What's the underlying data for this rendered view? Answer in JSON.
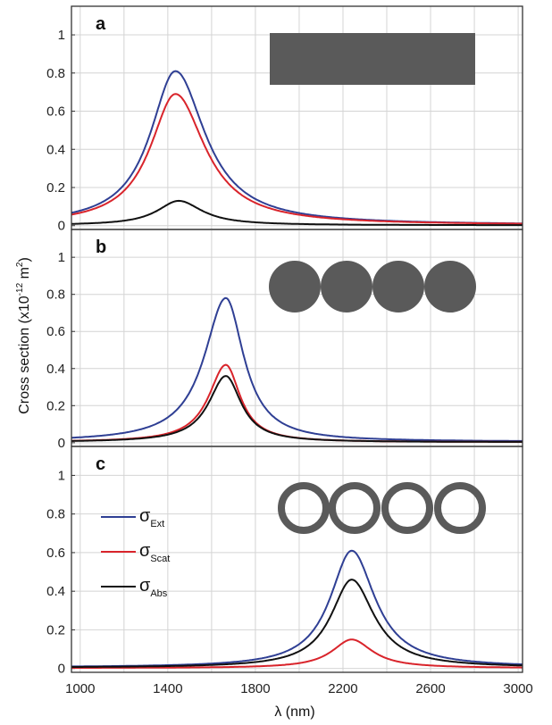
{
  "chart_data": {
    "type": "line",
    "xlabel": "λ (nm)",
    "ylabel": "Cross section (x10-12 m2)",
    "ylabel_parts": {
      "pre": "Cross section (x10",
      "sup1": "-12",
      "mid": " m",
      "sup2": "2",
      "post": ")"
    },
    "xlim": [
      960,
      3020
    ],
    "ylim": [
      -0.02,
      1.15
    ],
    "x_ticks": [
      1000,
      1400,
      1800,
      2200,
      2600,
      3000
    ],
    "x_tick_labels": [
      "1000",
      "1400",
      "1800",
      "2200",
      "2600",
      "3000"
    ],
    "y_ticks": [
      0,
      0.2,
      0.4,
      0.6,
      0.8,
      1
    ],
    "y_tick_labels": [
      "0",
      "0.2",
      "0.4",
      "0.6",
      "0.8",
      "1"
    ],
    "grid": true,
    "legend_placement": "left",
    "legend": [
      {
        "symbol": "σ",
        "sub": "Ext",
        "color": "#2f3f94"
      },
      {
        "symbol": "σ",
        "sub": "Scat",
        "color": "#d9242b"
      },
      {
        "symbol": "σ",
        "sub": "Abs",
        "color": "#111111"
      }
    ],
    "panels": [
      {
        "label": "a",
        "inset": "rod",
        "series": [
          {
            "color": "#2f3f94",
            "peak_x": 1435,
            "peak_y": 0.81,
            "gamma_left": 140,
            "gamma_right": 165,
            "baseline": 0.003
          },
          {
            "color": "#d9242b",
            "peak_x": 1435,
            "peak_y": 0.69,
            "gamma_left": 140,
            "gamma_right": 165,
            "baseline": 0.003
          },
          {
            "color": "#111111",
            "peak_x": 1450,
            "peak_y": 0.13,
            "gamma_left": 120,
            "gamma_right": 130,
            "baseline": 0.002
          }
        ]
      },
      {
        "label": "b",
        "inset": "spheres",
        "series": [
          {
            "color": "#2f3f94",
            "peak_x": 1665,
            "peak_y": 0.78,
            "gamma_left": 120,
            "gamma_right": 100,
            "baseline": 0.005
          },
          {
            "color": "#d9242b",
            "peak_x": 1665,
            "peak_y": 0.42,
            "gamma_left": 95,
            "gamma_right": 80,
            "baseline": 0.003
          },
          {
            "color": "#111111",
            "peak_x": 1665,
            "peak_y": 0.36,
            "gamma_left": 95,
            "gamma_right": 85,
            "baseline": 0.003
          }
        ]
      },
      {
        "label": "c",
        "inset": "rings",
        "series": [
          {
            "color": "#2f3f94",
            "peak_x": 2240,
            "peak_y": 0.61,
            "gamma_left": 120,
            "gamma_right": 130,
            "baseline": 0.005
          },
          {
            "color": "#d9242b",
            "peak_x": 2240,
            "peak_y": 0.15,
            "gamma_left": 110,
            "gamma_right": 115,
            "baseline": 0.002
          },
          {
            "color": "#111111",
            "peak_x": 2240,
            "peak_y": 0.46,
            "gamma_left": 115,
            "gamma_right": 125,
            "baseline": 0.004
          }
        ]
      }
    ]
  }
}
